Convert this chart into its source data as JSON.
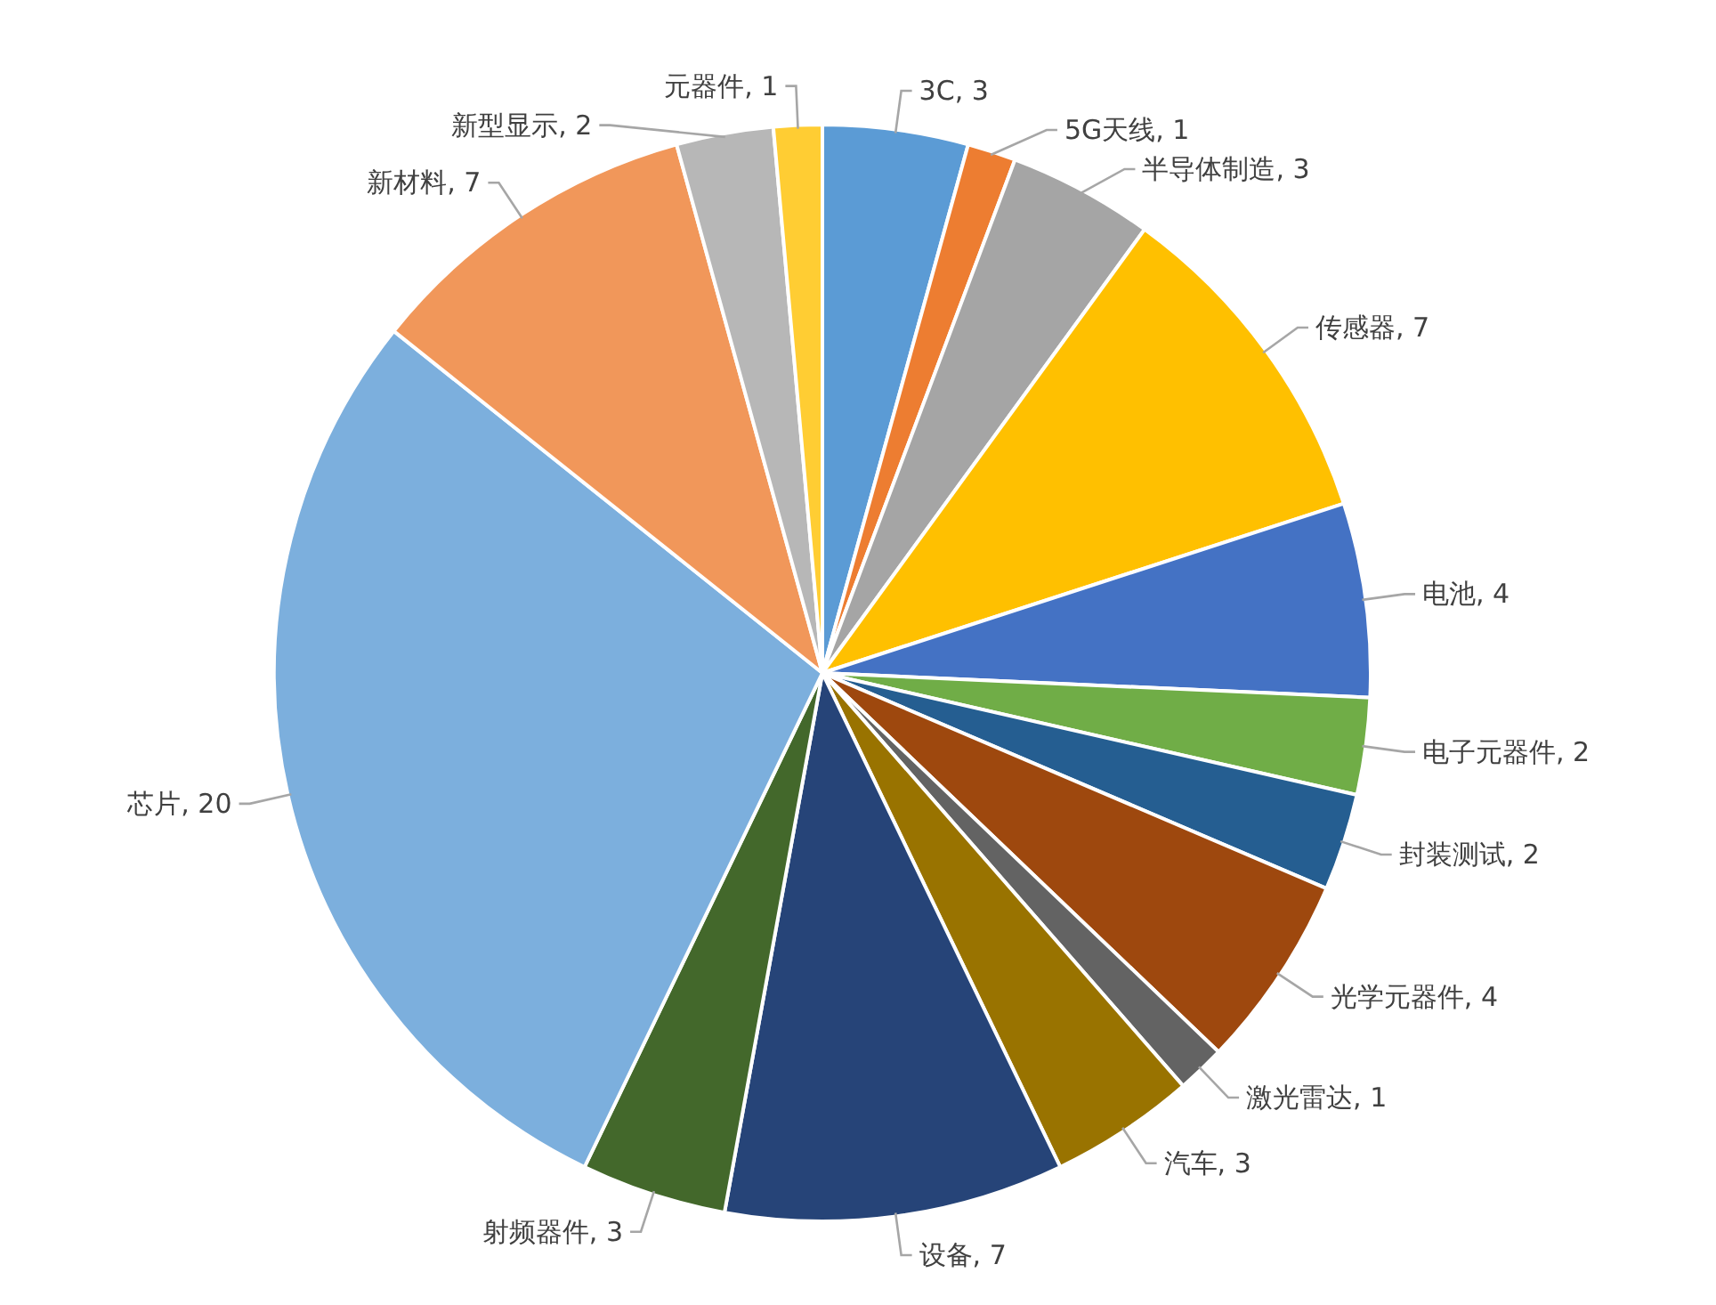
{
  "chart_data": {
    "type": "pie",
    "categories": [
      "3C",
      "5G天线",
      "半导体制造",
      "传感器",
      "电池",
      "电子元器件",
      "封装测试",
      "光学元器件",
      "激光雷达",
      "汽车",
      "设备",
      "射频器件",
      "芯片",
      "新材料",
      "新型显示",
      "元器件"
    ],
    "values": [
      3,
      1,
      3,
      7,
      4,
      2,
      2,
      4,
      1,
      3,
      7,
      3,
      20,
      7,
      2,
      1
    ],
    "value_labels": [
      ", 3",
      ", 1",
      ", 3",
      ", 7",
      ", 4",
      ", 2",
      ", 2",
      ", 4",
      ", 1",
      ", 3",
      ", 7",
      ", 3",
      ", 20",
      ", 7",
      ", 2",
      ", 1"
    ],
    "colors": [
      "#5b9bd5",
      "#ed7d31",
      "#a5a5a5",
      "#ffc000",
      "#4472c4",
      "#70ad47",
      "#255e91",
      "#9e480e",
      "#636363",
      "#997300",
      "#264478",
      "#43682b",
      "#7cafdd",
      "#f1975a",
      "#b7b7b7",
      "#ffcd33"
    ]
  }
}
